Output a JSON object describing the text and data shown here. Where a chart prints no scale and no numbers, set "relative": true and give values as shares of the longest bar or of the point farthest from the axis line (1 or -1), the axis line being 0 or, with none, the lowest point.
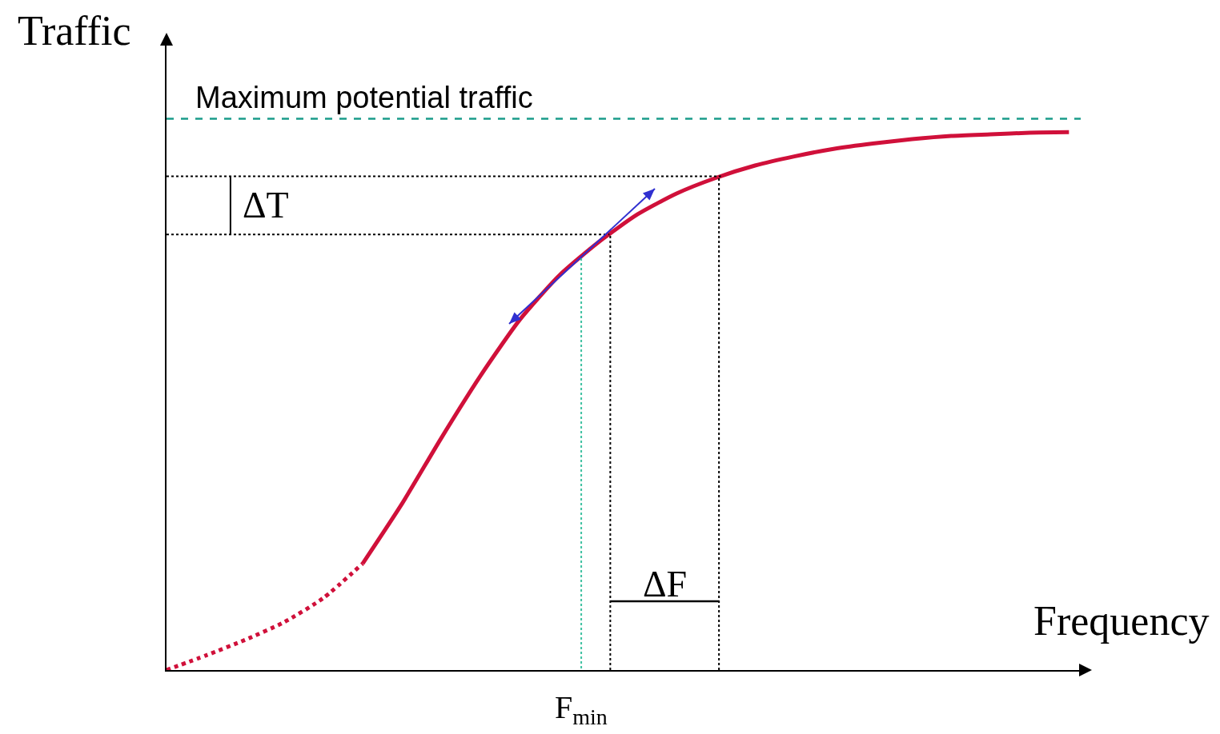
{
  "chart_data": {
    "type": "line",
    "relative": true,
    "xlabel": "Frequency",
    "ylabel": "Traffic",
    "categories": [
      null,
      null,
      null,
      null,
      null,
      null,
      null,
      null,
      null,
      null,
      null,
      null,
      null,
      null,
      null,
      null,
      null,
      null,
      null,
      null,
      null,
      null,
      null,
      null
    ],
    "series": [
      {
        "color": "#d0103a",
        "line_style": "dotted",
        "values": [
          0,
          0.027,
          0.056,
          0.089,
          0.134,
          0.198,
          null,
          null,
          null,
          null,
          null,
          null,
          null,
          null,
          null,
          null,
          null,
          null,
          null,
          null,
          null,
          null,
          null,
          null
        ]
      },
      {
        "color": "#d0103a",
        "line_style": "solid",
        "values": [
          null,
          null,
          null,
          null,
          null,
          0.198,
          0.309,
          0.431,
          0.547,
          0.651,
          0.733,
          0.795,
          0.847,
          0.886,
          0.915,
          0.938,
          0.955,
          0.969,
          0.979,
          0.987,
          0.993,
          0.996,
          0.999,
          1
        ]
      }
    ],
    "ref_lines": [
      {
        "axis": "y",
        "value": 1.025,
        "label": "Maximum potential traffic",
        "color": "#1a9c8a",
        "line_style": "dashed"
      },
      {
        "axis": "y",
        "value": 0.918,
        "color": "#000000",
        "line_style": "dotted"
      },
      {
        "axis": "y",
        "value": 0.81,
        "color": "#000000",
        "line_style": "dotted"
      }
    ],
    "annotations": [
      "ΔT",
      "ΔF",
      "F$_{min}$"
    ],
    "marker": "none"
  }
}
